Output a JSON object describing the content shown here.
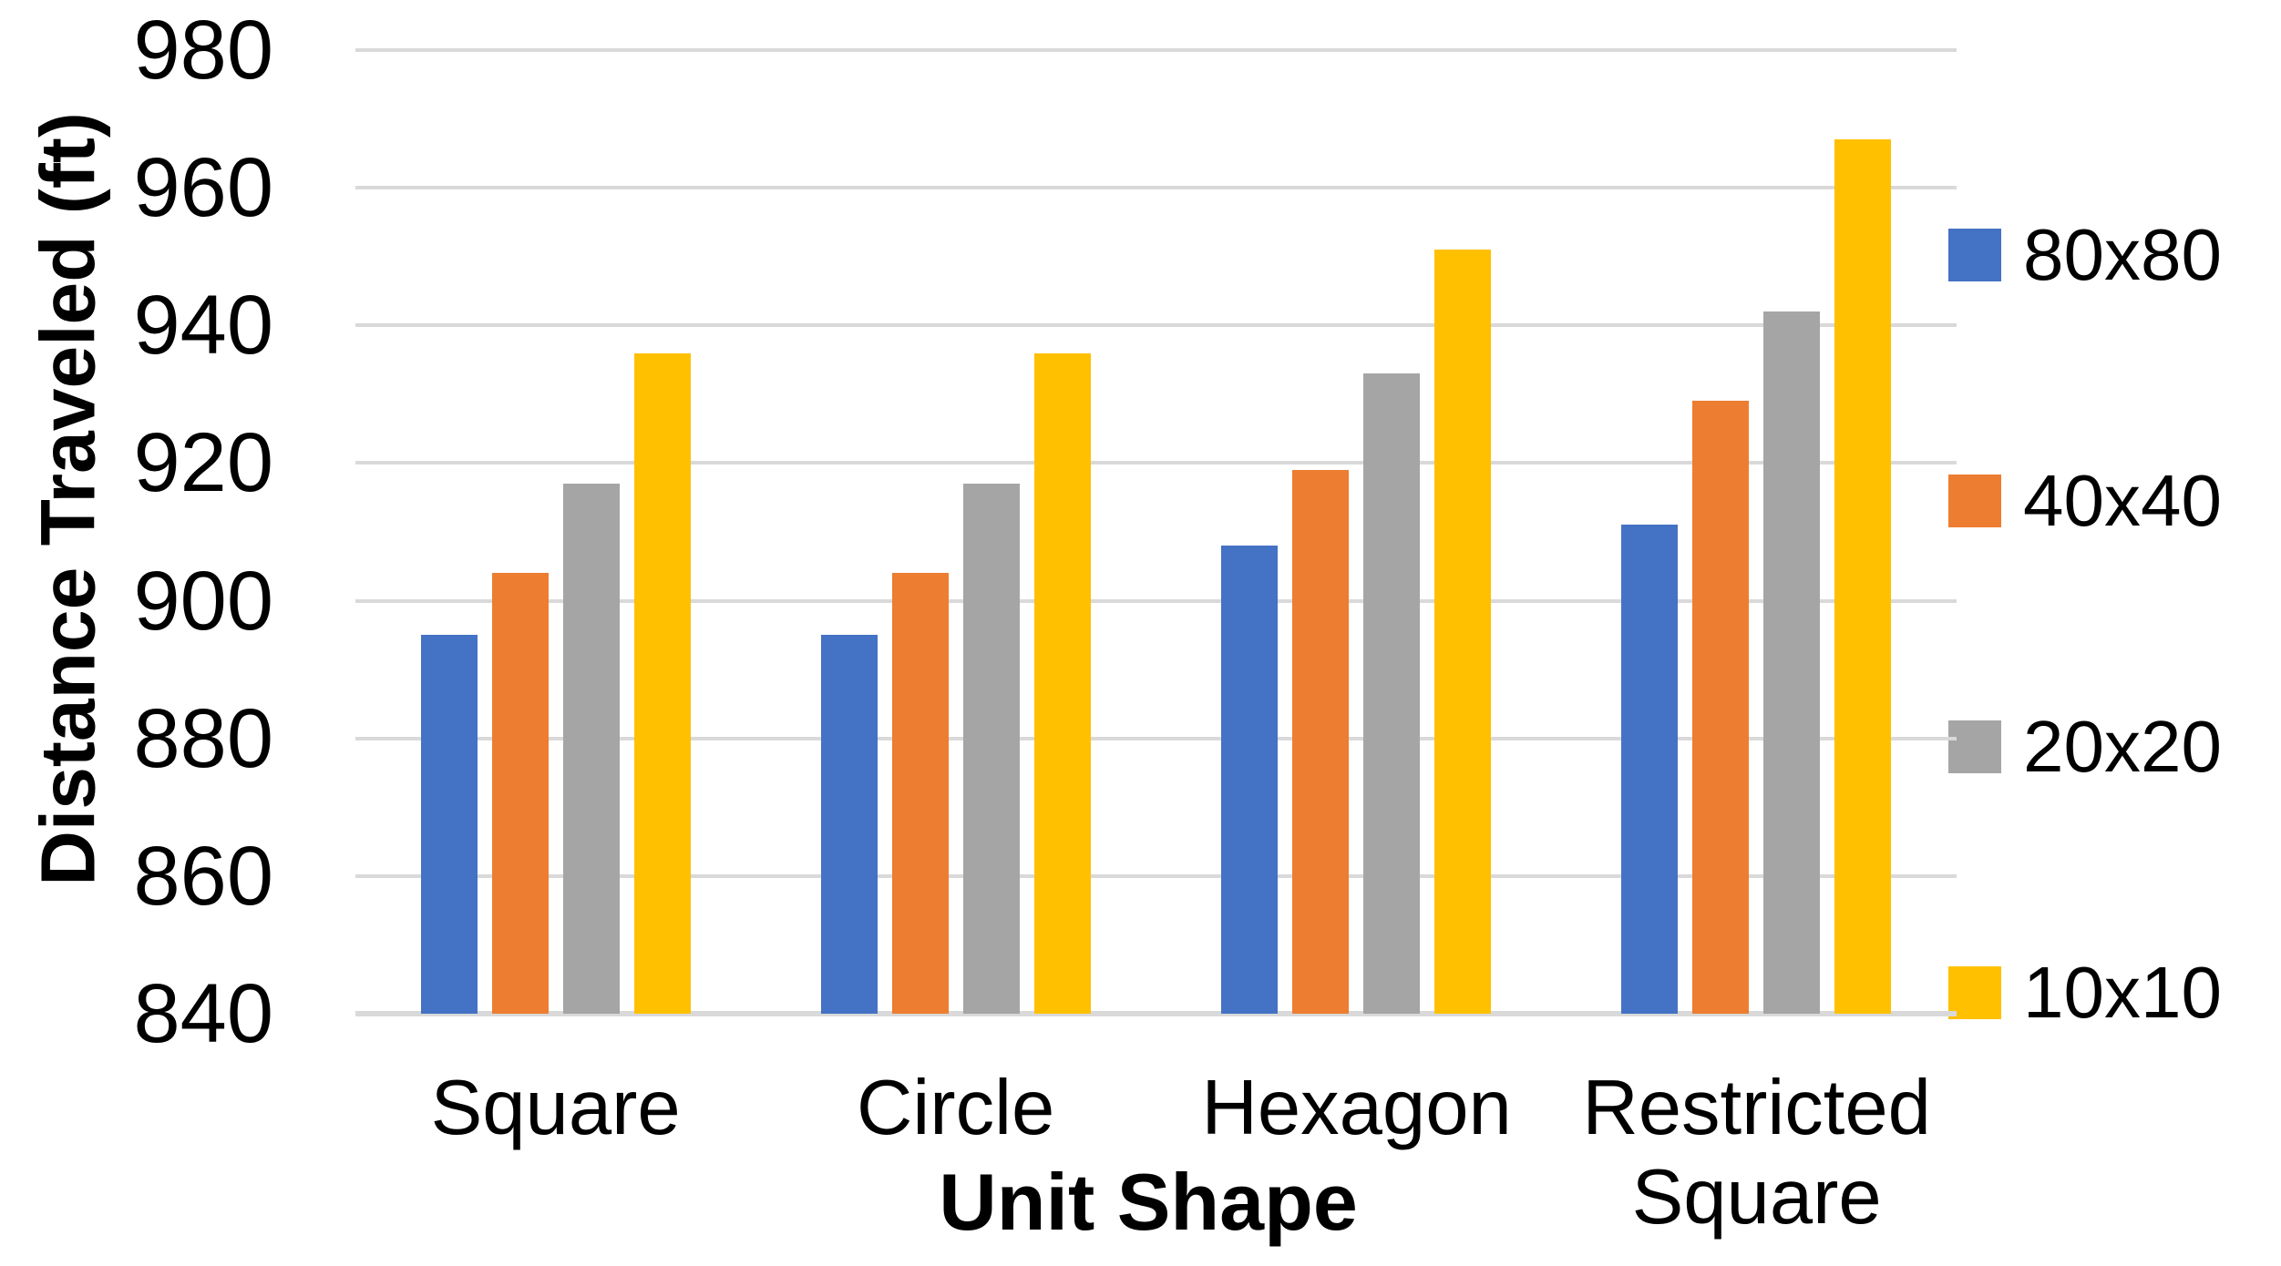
{
  "chart_data": {
    "type": "bar",
    "title": "",
    "xlabel": "Unit Shape",
    "ylabel": "Distance Traveled (ft)",
    "ylim": [
      840,
      980
    ],
    "ytick_step": 20,
    "yticks": [
      980,
      960,
      940,
      920,
      900,
      880,
      860,
      840
    ],
    "categories": [
      "Square",
      "Circle",
      "Hexagon",
      "Restricted Square"
    ],
    "series": [
      {
        "name": "80x80",
        "color": "#4472C4",
        "values": [
          895,
          895,
          908,
          911
        ]
      },
      {
        "name": "40x40",
        "color": "#ED7D31",
        "values": [
          904,
          904,
          919,
          929
        ]
      },
      {
        "name": "20x20",
        "color": "#A5A5A5",
        "values": [
          917,
          917,
          933,
          942
        ]
      },
      {
        "name": "10x10",
        "color": "#FFC000",
        "values": [
          936,
          936,
          951,
          967
        ]
      }
    ],
    "legend_position": "right",
    "grid": "horizontal",
    "grid_color": "#D9D9D9",
    "axis_line_color": "#D9D9D9",
    "background": "#FFFFFF",
    "text_color": "#000000"
  }
}
